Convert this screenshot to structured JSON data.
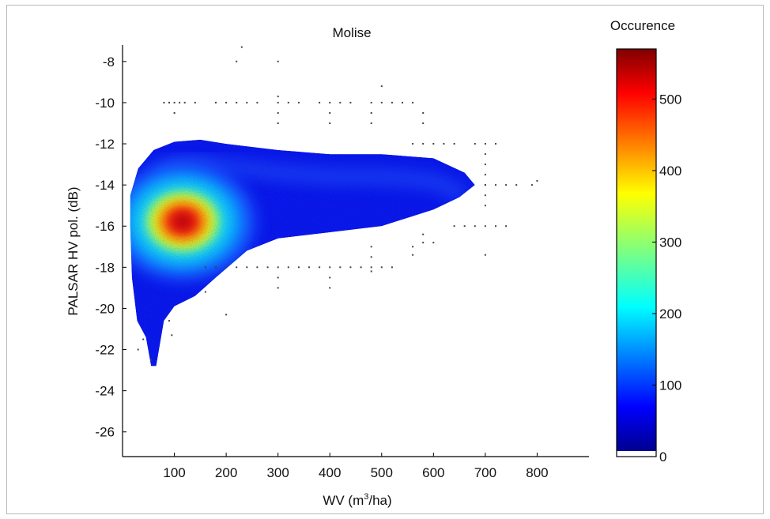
{
  "chart_data": {
    "type": "heatmap",
    "title": "Molise",
    "xlabel": "WV (m³/ha)",
    "xlabel_base": "WV (m",
    "xlabel_sup": "3",
    "xlabel_tail": "/ha)",
    "ylabel": "PALSAR HV pol. (dB)",
    "xlim": [
      0,
      900
    ],
    "ylim": [
      -27.2,
      -7.2
    ],
    "x_ticks": [
      100,
      200,
      300,
      400,
      500,
      600,
      700,
      800
    ],
    "y_ticks": [
      -8,
      -10,
      -12,
      -14,
      -16,
      -18,
      -20,
      -22,
      -24,
      -26
    ],
    "colorbar": {
      "title": "Occurence",
      "range": [
        0,
        570
      ],
      "ticks": [
        0,
        100,
        200,
        300,
        400,
        500
      ],
      "colormap": "jet"
    },
    "density_cloud": {
      "peak": {
        "x": 110,
        "y": -15.7,
        "occurrence": 570
      },
      "upper_edge": [
        [
          15,
          -14.5
        ],
        [
          30,
          -13.2
        ],
        [
          60,
          -12.3
        ],
        [
          100,
          -11.9
        ],
        [
          150,
          -11.8
        ],
        [
          200,
          -12.0
        ],
        [
          300,
          -12.3
        ],
        [
          400,
          -12.5
        ],
        [
          500,
          -12.5
        ],
        [
          600,
          -12.7
        ],
        [
          660,
          -13.4
        ],
        [
          680,
          -14.0
        ]
      ],
      "lower_edge": [
        [
          680,
          -14.0
        ],
        [
          650,
          -14.6
        ],
        [
          600,
          -15.2
        ],
        [
          500,
          -16.0
        ],
        [
          400,
          -16.3
        ],
        [
          300,
          -16.6
        ],
        [
          240,
          -17.2
        ],
        [
          180,
          -18.5
        ],
        [
          140,
          -19.4
        ],
        [
          100,
          -19.9
        ],
        [
          80,
          -20.6
        ],
        [
          65,
          -22.8
        ],
        [
          55,
          -22.8
        ],
        [
          45,
          -21.4
        ],
        [
          28,
          -20.6
        ],
        [
          18,
          -18.5
        ],
        [
          15,
          -16.0
        ]
      ]
    },
    "outlier_points": [
      [
        230,
        -7.3
      ],
      [
        220,
        -8.0
      ],
      [
        300,
        -8.0
      ],
      [
        80,
        -10
      ],
      [
        90,
        -10
      ],
      [
        100,
        -10
      ],
      [
        110,
        -10
      ],
      [
        120,
        -10
      ],
      [
        140,
        -10
      ],
      [
        180,
        -10
      ],
      [
        200,
        -10
      ],
      [
        220,
        -10
      ],
      [
        240,
        -10
      ],
      [
        260,
        -10
      ],
      [
        300,
        -10
      ],
      [
        320,
        -10
      ],
      [
        340,
        -10
      ],
      [
        380,
        -10
      ],
      [
        400,
        -10
      ],
      [
        420,
        -10
      ],
      [
        440,
        -10
      ],
      [
        480,
        -10
      ],
      [
        500,
        -10
      ],
      [
        520,
        -10
      ],
      [
        540,
        -10
      ],
      [
        560,
        -10
      ],
      [
        300,
        -9.7
      ],
      [
        500,
        -9.2
      ],
      [
        100,
        -10.5
      ],
      [
        300,
        -10.5
      ],
      [
        300,
        -11.0
      ],
      [
        400,
        -10.5
      ],
      [
        400,
        -11.0
      ],
      [
        480,
        -10.5
      ],
      [
        480,
        -11.0
      ],
      [
        580,
        -10.5
      ],
      [
        580,
        -11.0
      ],
      [
        560,
        -12
      ],
      [
        580,
        -12
      ],
      [
        600,
        -12
      ],
      [
        620,
        -12
      ],
      [
        640,
        -12
      ],
      [
        680,
        -12
      ],
      [
        700,
        -12
      ],
      [
        720,
        -12
      ],
      [
        700,
        -12.5
      ],
      [
        700,
        -13.0
      ],
      [
        700,
        -13.5
      ],
      [
        700,
        -14.0
      ],
      [
        700,
        -14.5
      ],
      [
        700,
        -15.0
      ],
      [
        700,
        -14
      ],
      [
        720,
        -14
      ],
      [
        740,
        -14
      ],
      [
        760,
        -14
      ],
      [
        800,
        -13.8
      ],
      [
        790,
        -14.0
      ],
      [
        640,
        -16
      ],
      [
        660,
        -16
      ],
      [
        680,
        -16
      ],
      [
        700,
        -16
      ],
      [
        720,
        -16
      ],
      [
        740,
        -16
      ],
      [
        580,
        -16.4
      ],
      [
        580,
        -16.8
      ],
      [
        560,
        -17.0
      ],
      [
        560,
        -17.4
      ],
      [
        600,
        -16.8
      ],
      [
        700,
        -17.4
      ],
      [
        160,
        -18
      ],
      [
        180,
        -18
      ],
      [
        200,
        -18
      ],
      [
        220,
        -18
      ],
      [
        240,
        -18
      ],
      [
        260,
        -18
      ],
      [
        280,
        -18
      ],
      [
        300,
        -18
      ],
      [
        320,
        -18
      ],
      [
        340,
        -18
      ],
      [
        360,
        -18
      ],
      [
        380,
        -18
      ],
      [
        400,
        -18
      ],
      [
        420,
        -18
      ],
      [
        440,
        -18
      ],
      [
        460,
        -18
      ],
      [
        480,
        -18
      ],
      [
        500,
        -18
      ],
      [
        520,
        -18
      ],
      [
        300,
        -18.5
      ],
      [
        300,
        -19.0
      ],
      [
        400,
        -18.5
      ],
      [
        400,
        -19.0
      ],
      [
        480,
        -17.0
      ],
      [
        480,
        -17.5
      ],
      [
        480,
        -18.2
      ],
      [
        160,
        -19.2
      ],
      [
        200,
        -20.3
      ],
      [
        90,
        -20.6
      ],
      [
        95,
        -21.3
      ],
      [
        30,
        -22.0
      ],
      [
        55,
        -22.5
      ],
      [
        40,
        -21.5
      ]
    ]
  }
}
